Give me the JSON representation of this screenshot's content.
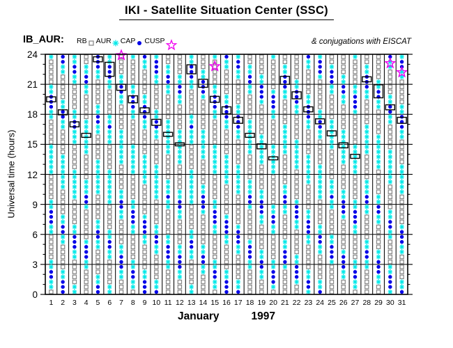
{
  "title": "IKI - Satellite Situation Center (SSC)",
  "legend": {
    "label": "IB_AUR:",
    "items": [
      {
        "name": "RB",
        "marker": "square-icon"
      },
      {
        "name": "AUR",
        "marker": "asterisk-icon"
      },
      {
        "name": "CAP",
        "marker": "dot-icon"
      },
      {
        "name": "CUSP",
        "marker": "star-icon"
      }
    ],
    "note": "& conjugations with EISCAT"
  },
  "axes": {
    "y_label": "Universal time (hours)",
    "y_range": [
      0,
      24
    ],
    "y_ticks": [
      0,
      3,
      6,
      9,
      12,
      15,
      18,
      21,
      24
    ],
    "y_minor_step": 1,
    "x_ticks": [
      1,
      2,
      3,
      4,
      5,
      6,
      7,
      8,
      9,
      10,
      11,
      12,
      13,
      14,
      15,
      16,
      17,
      18,
      19,
      20,
      21,
      22,
      23,
      24,
      25,
      26,
      27,
      28,
      29,
      30,
      31
    ],
    "x_label_month": "January",
    "x_label_year": "1997"
  },
  "colors": {
    "RB": "#888888",
    "AUR": "#00e8e8",
    "CAP": "#0000e8",
    "CUSP": "#f000f0",
    "frame": "#000000",
    "eiscat_box": "#000000"
  },
  "chart_data": {
    "type": "scatter",
    "description": "Region of the Interball Auroral probe (IB_AUR) vs universal time for each day of January 1997. Each day column holds a half-hour marker sequence cycling through radiation belt (RB, grey squares), auroral zone (AUR, cyan asterisks) and polar cap (CAP, blue dots) with orbital period ~5.77 h; black open boxes mark EISCAT conjugation intervals; magenta stars mark CUSP crossings.",
    "orbit": {
      "period_hours": 5.77,
      "step_hours": 0.5,
      "cycle": [
        [
          "CAP",
          1.3
        ],
        [
          "AUR",
          0.97
        ],
        [
          "RB",
          2.6
        ],
        [
          "AUR",
          0.9
        ]
      ],
      "dayside_cap_as_aur": [
        10,
        16.5
      ]
    },
    "days": [
      {
        "day": 1,
        "cap_phase": 18.6,
        "eiscat": {
          "hour": 19.5,
          "len": 0.5
        }
      },
      {
        "day": 2,
        "cap_phase": 17.3,
        "eiscat": {
          "hour": 18.2,
          "len": 0.5
        }
      },
      {
        "day": 3,
        "cap_phase": 16.1,
        "eiscat": {
          "hour": 17.0,
          "len": 0.5
        }
      },
      {
        "day": 4,
        "cap_phase": 15.0,
        "eiscat": {
          "hour": 15.9,
          "len": 0.4
        }
      },
      {
        "day": 5,
        "cap_phase": 22.6,
        "eiscat": {
          "hour": 23.5,
          "len": 0.5
        }
      },
      {
        "day": 6,
        "cap_phase": 21.6,
        "eiscat": {
          "hour": 22.5,
          "len": 1.4
        }
      },
      {
        "day": 7,
        "cap_phase": 19.8,
        "eiscat": {
          "hour": 20.7,
          "len": 0.6
        }
      },
      {
        "day": 8,
        "cap_phase": 18.6,
        "eiscat": {
          "hour": 19.5,
          "len": 0.7
        }
      },
      {
        "day": 9,
        "cap_phase": 17.5,
        "eiscat": {
          "hour": 18.4,
          "len": 0.5
        }
      },
      {
        "day": 10,
        "cap_phase": 16.3,
        "eiscat": {
          "hour": 17.2,
          "len": 0.6
        }
      },
      {
        "day": 11,
        "cap_phase": 15.1,
        "eiscat": {
          "hour": 16.0,
          "len": 0.4
        }
      },
      {
        "day": 12,
        "cap_phase": 14.1,
        "eiscat": {
          "hour": 15.0,
          "len": 0.3
        }
      },
      {
        "day": 13,
        "cap_phase": 21.6,
        "eiscat": {
          "hour": 22.5,
          "len": 0.9
        }
      },
      {
        "day": 14,
        "cap_phase": 20.2,
        "eiscat": {
          "hour": 21.1,
          "len": 0.8
        }
      },
      {
        "day": 15,
        "cap_phase": 18.6,
        "eiscat": {
          "hour": 19.5,
          "len": 0.6
        }
      },
      {
        "day": 16,
        "cap_phase": 17.5,
        "eiscat": {
          "hour": 18.4,
          "len": 0.7
        }
      },
      {
        "day": 17,
        "cap_phase": 16.5,
        "eiscat": {
          "hour": 17.4,
          "len": 0.6
        }
      },
      {
        "day": 18,
        "cap_phase": 15.0,
        "eiscat": {
          "hour": 15.9,
          "len": 0.4
        }
      },
      {
        "day": 19,
        "cap_phase": 13.9,
        "eiscat": {
          "hour": 14.8,
          "len": 0.5
        }
      },
      {
        "day": 20,
        "cap_phase": 12.7,
        "eiscat": {
          "hour": 13.6,
          "len": 0.3
        }
      },
      {
        "day": 21,
        "cap_phase": 20.5,
        "eiscat": {
          "hour": 21.4,
          "len": 0.8
        }
      },
      {
        "day": 22,
        "cap_phase": 19.0,
        "eiscat": {
          "hour": 19.9,
          "len": 0.7
        }
      },
      {
        "day": 23,
        "cap_phase": 17.6,
        "eiscat": {
          "hour": 18.5,
          "len": 0.5
        }
      },
      {
        "day": 24,
        "cap_phase": 16.4,
        "eiscat": {
          "hour": 17.3,
          "len": 0.5
        }
      },
      {
        "day": 25,
        "cap_phase": 15.2,
        "eiscat": {
          "hour": 16.1,
          "len": 0.5
        }
      },
      {
        "day": 26,
        "cap_phase": 14.0,
        "eiscat": {
          "hour": 14.9,
          "len": 0.5
        }
      },
      {
        "day": 27,
        "cap_phase": 12.9,
        "eiscat": {
          "hour": 13.8,
          "len": 0.4
        }
      },
      {
        "day": 28,
        "cap_phase": 20.6,
        "eiscat": {
          "hour": 21.5,
          "len": 0.5
        }
      },
      {
        "day": 29,
        "cap_phase": 19.4,
        "eiscat": {
          "hour": 20.3,
          "len": 1.3
        }
      },
      {
        "day": 30,
        "cap_phase": 17.8,
        "eiscat": {
          "hour": 18.7,
          "len": 0.5
        }
      },
      {
        "day": 31,
        "cap_phase": 16.5,
        "eiscat": {
          "hour": 17.4,
          "len": 0.6
        }
      }
    ],
    "cusp_stars": [
      {
        "day": 7,
        "hour": 23.9
      },
      {
        "day": 15,
        "hour": 22.8
      },
      {
        "day": 30,
        "hour": 23.1
      },
      {
        "day": 31,
        "hour": 22.2
      }
    ]
  }
}
